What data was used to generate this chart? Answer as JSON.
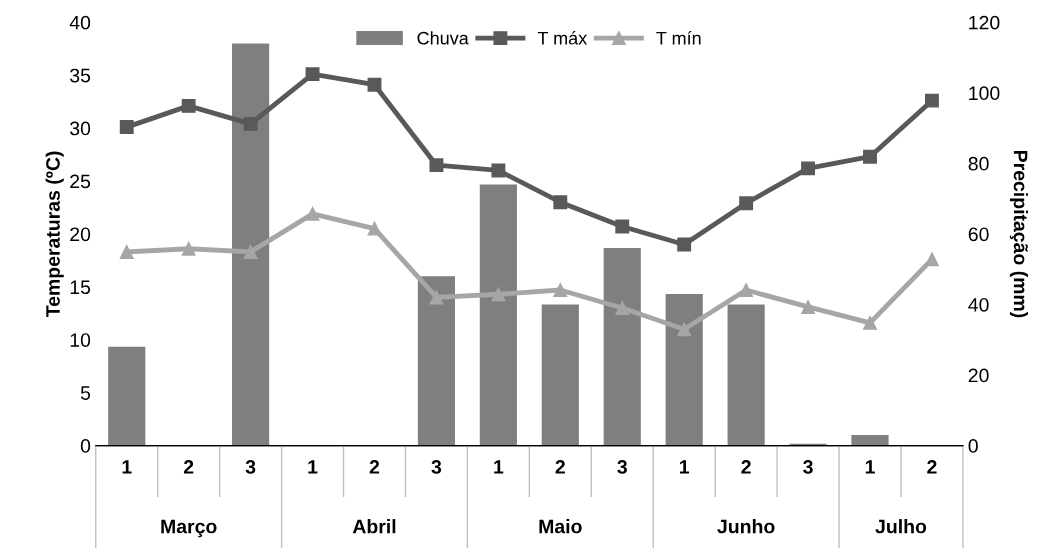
{
  "chart_data": {
    "type": "bar",
    "ylabel": "Temperaturas (ºC)",
    "y2label": "Precipitação (mm)",
    "categories": [
      "1",
      "2",
      "3",
      "1",
      "2",
      "3",
      "1",
      "2",
      "3",
      "1",
      "2",
      "3",
      "1",
      "2"
    ],
    "annotations": [
      "Março",
      "Abril",
      "Maio",
      "Junho",
      "Julho"
    ],
    "series": [
      {
        "name": "Chuva",
        "axis": "y2",
        "color": "#7f7f7f",
        "values": [
          28,
          0,
          114,
          0,
          0,
          48,
          74,
          40,
          56,
          43,
          40,
          0.5,
          3,
          0
        ]
      },
      {
        "name": "T máx",
        "type": "line",
        "marker": "square",
        "color": "#595959",
        "values": [
          30.1,
          32.1,
          30.4,
          35.1,
          34.1,
          26.5,
          26,
          23,
          20.7,
          19,
          22.9,
          26.2,
          27.3,
          32.6
        ]
      },
      {
        "name": "T mín",
        "type": "line",
        "marker": "triangle",
        "color": "#a6a6a6",
        "values": [
          18.3,
          18.6,
          18.3,
          21.9,
          20.5,
          14,
          14.3,
          14.7,
          13,
          11,
          14.7,
          13.1,
          11.6,
          17.6
        ]
      }
    ],
    "ylim": [
      0,
      40
    ],
    "yticks": [
      0,
      5,
      10,
      15,
      20,
      25,
      30,
      35,
      40
    ],
    "y2lim": [
      0,
      120
    ],
    "y2ticks": [
      0,
      20,
      40,
      60,
      80,
      100,
      120
    ],
    "grid": false,
    "legend": "top"
  }
}
